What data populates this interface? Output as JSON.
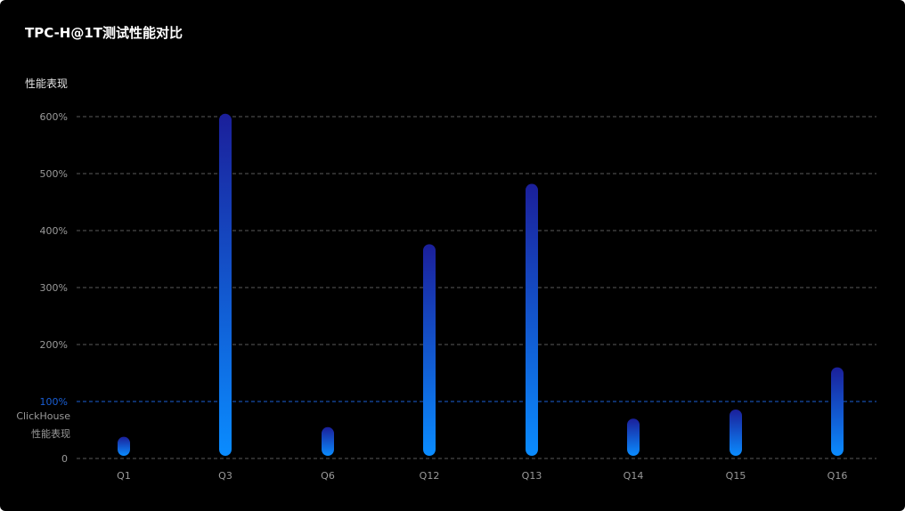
{
  "chart_data": {
    "type": "bar",
    "title": "TPC-H@1T测试性能对比",
    "ylabel": "性能表现",
    "xlabel": "",
    "categories": [
      "Q1",
      "Q3",
      "Q6",
      "Q12",
      "Q13",
      "Q14",
      "Q15",
      "Q16"
    ],
    "values": [
      38,
      605,
      55,
      376,
      482,
      70,
      86,
      160
    ],
    "unit": "%",
    "ylim": [
      0,
      600
    ],
    "yticks": [
      {
        "value": 0,
        "label": "0"
      },
      {
        "value": 100,
        "label": "100%"
      },
      {
        "value": 200,
        "label": "200%"
      },
      {
        "value": 300,
        "label": "300%"
      },
      {
        "value": 400,
        "label": "400%"
      },
      {
        "value": 500,
        "label": "500%"
      },
      {
        "value": 600,
        "label": "600%"
      }
    ],
    "grid": true,
    "reference_line": {
      "value": 100,
      "label_line1": "ClickHouse",
      "label_line2": "性能表现",
      "color": "#1a5fd6"
    },
    "colors": {
      "background": "#000000",
      "bar_top": "#1b1f9a",
      "bar_bottom": "#0a8cff",
      "grid": "#5a5a5a",
      "tick_text": "#9a9a9a",
      "reference": "#1a5fd6"
    }
  }
}
